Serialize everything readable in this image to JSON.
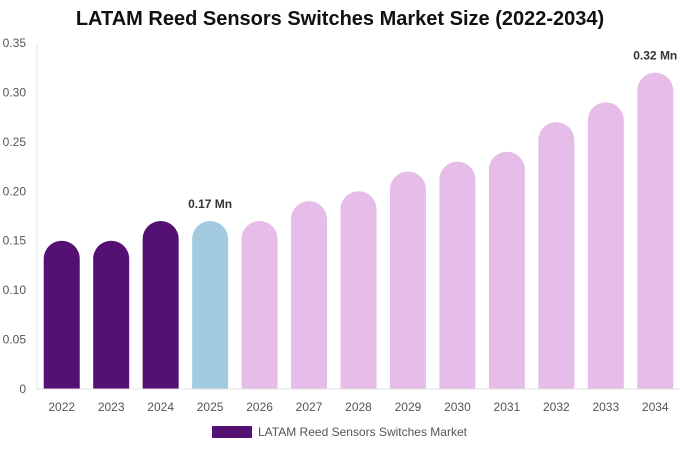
{
  "chart_data": {
    "type": "bar",
    "title": "LATAM Reed Sensors Switches Market Size (2022-2034)",
    "xlabel": "",
    "ylabel": "",
    "ylim": [
      0,
      0.35
    ],
    "yticks": [
      "0",
      "0.05",
      "0.10",
      "0.15",
      "0.20",
      "0.25",
      "0.30",
      "0.35"
    ],
    "categories": [
      "2022",
      "2023",
      "2024",
      "2025",
      "2026",
      "2027",
      "2028",
      "2029",
      "2030",
      "2031",
      "2032",
      "2033",
      "2034"
    ],
    "series": [
      {
        "name": "LATAM Reed Sensors Switches Market",
        "values": [
          0.15,
          0.15,
          0.17,
          0.17,
          0.17,
          0.19,
          0.2,
          0.22,
          0.23,
          0.24,
          0.27,
          0.29,
          0.32
        ]
      }
    ],
    "bar_colors": [
      "#541173",
      "#541173",
      "#541173",
      "#a3cbe0",
      "#e6bde9",
      "#e6bde9",
      "#e6bde9",
      "#e6bde9",
      "#e6bde9",
      "#e6bde9",
      "#e6bde9",
      "#e6bde9",
      "#e6bde9"
    ],
    "annotations": [
      {
        "index": 3,
        "text": "0.17 Mn"
      },
      {
        "index": 12,
        "text": "0.32 Mn"
      }
    ],
    "grid": false,
    "legend_position": "bottom-center",
    "legend_color": "#541173"
  }
}
